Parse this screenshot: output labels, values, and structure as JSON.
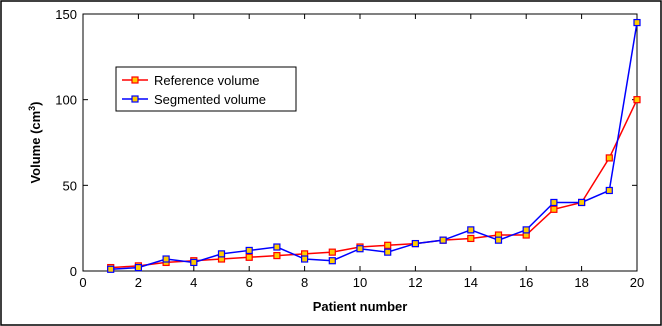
{
  "chart_data": {
    "type": "line",
    "xlabel": "Patient number",
    "ylabel_main": "Volume (cm",
    "ylabel_sup": "3",
    "ylabel_end": ")",
    "xlim": [
      0,
      20
    ],
    "ylim": [
      0,
      150
    ],
    "x_ticks": [
      0,
      2,
      4,
      6,
      8,
      10,
      12,
      14,
      16,
      18,
      20
    ],
    "y_ticks": [
      0,
      50,
      100,
      150
    ],
    "grid": false,
    "legend_placement": "top-left",
    "x": [
      1,
      2,
      3,
      4,
      5,
      6,
      7,
      8,
      9,
      10,
      11,
      12,
      13,
      14,
      15,
      16,
      17,
      18,
      19,
      20
    ],
    "series": [
      {
        "name": "Reference volume",
        "color": "#ff0000",
        "marker_fill": "#ffcc00",
        "values": [
          2,
          3,
          5,
          6,
          7,
          8,
          9,
          10,
          11,
          14,
          15,
          16,
          18,
          19,
          21,
          21,
          36,
          40,
          66,
          100
        ]
      },
      {
        "name": "Segmented volume",
        "color": "#0000ff",
        "marker_fill": "#ffcc00",
        "values": [
          1,
          2,
          7,
          5,
          10,
          12,
          14,
          7,
          6,
          13,
          11,
          16,
          18,
          24,
          18,
          24,
          40,
          40,
          47,
          145
        ]
      }
    ]
  }
}
